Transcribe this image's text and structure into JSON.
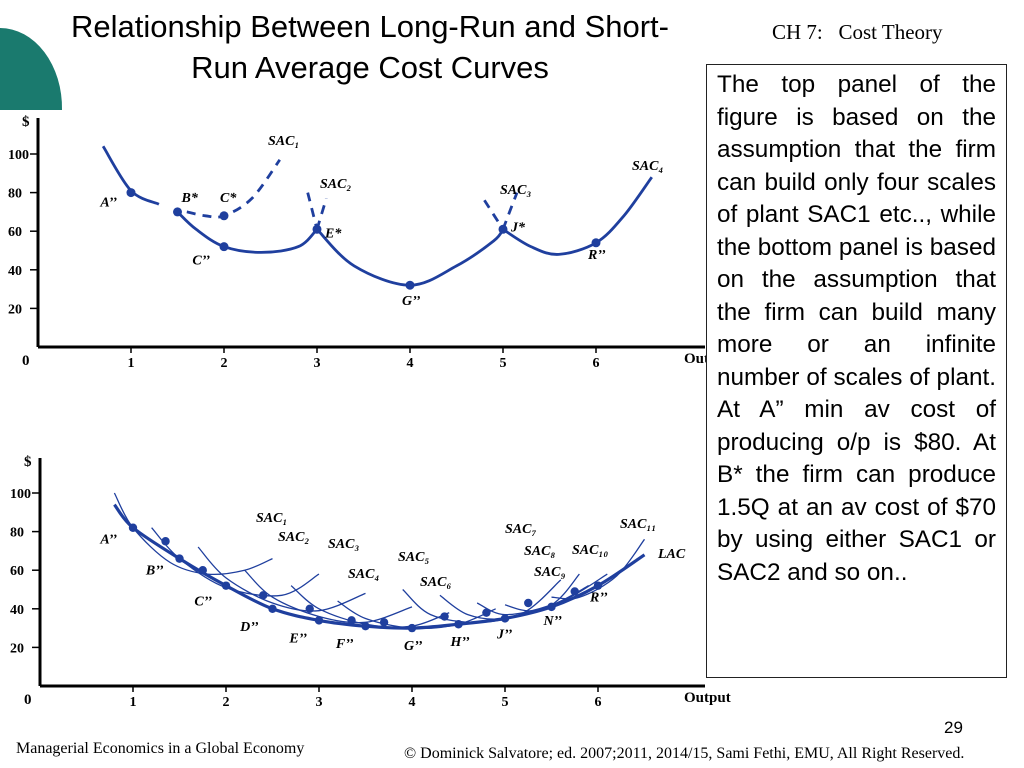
{
  "slide": {
    "title_line1": "Relationship Between Long-Run and Short-",
    "title_line2": "Run Average Cost Curves",
    "chapter": "CH 7:   Cost Theory",
    "side_text": "The top panel of the figure is based on the assumption that the firm can build only four scales of plant SAC1 etc.., while the bottom panel is based on the assumption that the firm can build many more or an infinite number of scales of plant. At  A” min av cost of producing o/p is $80. At B* the firm can produce 1.5Q at an av cost of $70 by using either SAC1 or SAC2 and so on..",
    "footer_left": "Managerial Economics  in a Global Economy",
    "footer_right": "© Dominick Salvatore; ed. 2007;2011, 2014/15, Sami Fethi, EMU, All Right Reserved.",
    "page_number": "29",
    "accent_color": "#1a7a6e",
    "curve_color": "#1f3f9e"
  },
  "chart_data": [
    {
      "type": "line",
      "panel": "top",
      "ylabel": "$",
      "xlabel": "Output",
      "origin_label": "0",
      "xlim": [
        0,
        7
      ],
      "ylim": [
        0,
        110
      ],
      "x_ticks": [
        1,
        2,
        3,
        4,
        5,
        6
      ],
      "y_ticks": [
        20,
        40,
        60,
        80,
        100
      ],
      "series": [
        {
          "name": "SAC₁",
          "x": [
            0.7,
            1.0,
            1.3,
            1.6,
            1.8,
            2.0,
            2.3,
            2.6
          ],
          "y": [
            104,
            81,
            74,
            70,
            68,
            68,
            77,
            97
          ],
          "dashed_from": 1.5
        },
        {
          "name": "SAC₂",
          "x": [
            1.5,
            1.7,
            2.0,
            2.4,
            2.8,
            3.0,
            3.1
          ],
          "y": [
            70,
            61,
            52,
            49,
            52,
            61,
            77
          ],
          "dashed_before": 1.5,
          "dashed_after": 3.0
        },
        {
          "name": "SAC₃",
          "x": [
            2.9,
            3.0,
            3.4,
            4.0,
            4.5,
            4.9,
            5.0,
            5.15
          ],
          "y": [
            80,
            61,
            42,
            32,
            42,
            55,
            61,
            80
          ],
          "dashed_before": 3.0,
          "dashed_after": 5.0
        },
        {
          "name": "SAC4",
          "x": [
            4.8,
            5.0,
            5.3,
            5.6,
            6.0,
            6.3,
            6.6
          ],
          "y": [
            76,
            61,
            52,
            48,
            54,
            68,
            88
          ],
          "dashed_before": 5.0
        }
      ],
      "points": [
        {
          "label": "A’’",
          "x": 1.0,
          "y": 80
        },
        {
          "label": "B*",
          "x": 1.5,
          "y": 70
        },
        {
          "label": "C*",
          "x": 2.0,
          "y": 68
        },
        {
          "label": "C’’",
          "x": 2.0,
          "y": 52
        },
        {
          "label": "E*",
          "x": 3.0,
          "y": 61
        },
        {
          "label": "G’’",
          "x": 4.0,
          "y": 32
        },
        {
          "label": "J*",
          "x": 5.0,
          "y": 61
        },
        {
          "label": "R’’",
          "x": 6.0,
          "y": 54
        }
      ],
      "curve_labels": [
        {
          "label": "SAC₁"
        },
        {
          "label": "SAC₂"
        },
        {
          "label": "SAC₃"
        },
        {
          "label": "SAC₄"
        }
      ]
    },
    {
      "type": "line",
      "panel": "bottom",
      "ylabel": "$",
      "xlabel": "Output",
      "origin_label": "0",
      "xlim": [
        0,
        7
      ],
      "ylim": [
        0,
        110
      ],
      "x_ticks": [
        1,
        2,
        3,
        4,
        5,
        6
      ],
      "y_ticks": [
        20,
        40,
        60,
        80,
        100
      ],
      "series": [
        {
          "name": "LAC",
          "x": [
            0.8,
            1.0,
            1.5,
            2.0,
            2.5,
            3.0,
            3.5,
            4.0,
            4.5,
            5.0,
            5.5,
            6.0,
            6.5
          ],
          "y": [
            94,
            82,
            66,
            52,
            40,
            34,
            31,
            30,
            32,
            35,
            41,
            52,
            68
          ]
        },
        {
          "name": "SAC₁",
          "x": [
            0.8,
            1.0,
            1.4,
            1.8,
            2.2,
            2.5
          ],
          "y": [
            100,
            82,
            64,
            58,
            60,
            66
          ]
        },
        {
          "name": "SAC₂",
          "x": [
            1.2,
            1.5,
            2.0,
            2.6,
            3.0
          ],
          "y": [
            82,
            66,
            51,
            47,
            58
          ]
        },
        {
          "name": "SAC₃",
          "x": [
            1.7,
            2.0,
            2.5,
            3.0,
            3.5
          ],
          "y": [
            72,
            56,
            43,
            39,
            48
          ]
        },
        {
          "name": "SAC₄",
          "x": [
            2.2,
            2.5,
            3.0,
            3.5,
            4.0
          ],
          "y": [
            60,
            46,
            36,
            33,
            41
          ]
        },
        {
          "name": "SAC₅",
          "x": [
            2.7,
            3.0,
            3.5,
            4.0,
            4.4
          ],
          "y": [
            52,
            40,
            32,
            31,
            38
          ]
        },
        {
          "name": "SAC₆",
          "x": [
            3.2,
            3.5,
            4.0,
            4.5,
            4.9
          ],
          "y": [
            44,
            35,
            30,
            32,
            40
          ]
        },
        {
          "name": "SAC₇",
          "x": [
            3.9,
            4.2,
            4.7,
            5.2,
            5.6
          ],
          "y": [
            50,
            37,
            33,
            38,
            55
          ]
        },
        {
          "name": "SAC₈",
          "x": [
            4.3,
            4.6,
            5.0,
            5.5,
            5.8
          ],
          "y": [
            47,
            37,
            35,
            42,
            58
          ]
        },
        {
          "name": "SAC₉",
          "x": [
            4.7,
            5.0,
            5.5,
            5.9
          ],
          "y": [
            43,
            37,
            42,
            52
          ]
        },
        {
          "name": "SAC₁₀",
          "x": [
            5.0,
            5.3,
            5.7,
            6.1
          ],
          "y": [
            42,
            39,
            46,
            58
          ]
        },
        {
          "name": "SAC₁₁",
          "x": [
            5.5,
            5.8,
            6.2,
            6.5
          ],
          "y": [
            46,
            46,
            57,
            76
          ]
        }
      ],
      "points": [
        {
          "label": "A’’",
          "x": 1.0,
          "y": 82
        },
        {
          "label": "",
          "x": 1.35,
          "y": 75
        },
        {
          "label": "B’’",
          "x": 1.5,
          "y": 66
        },
        {
          "label": "",
          "x": 1.75,
          "y": 60
        },
        {
          "label": "C’’",
          "x": 2.0,
          "y": 52
        },
        {
          "label": "",
          "x": 2.4,
          "y": 47
        },
        {
          "label": "D’’",
          "x": 2.5,
          "y": 40
        },
        {
          "label": "",
          "x": 2.9,
          "y": 40
        },
        {
          "label": "E’’",
          "x": 3.0,
          "y": 34
        },
        {
          "label": "",
          "x": 3.35,
          "y": 34
        },
        {
          "label": "F’’",
          "x": 3.5,
          "y": 31
        },
        {
          "label": "",
          "x": 3.7,
          "y": 33
        },
        {
          "label": "G’’",
          "x": 4.0,
          "y": 30
        },
        {
          "label": "",
          "x": 4.35,
          "y": 36
        },
        {
          "label": "H’’",
          "x": 4.5,
          "y": 32
        },
        {
          "label": "",
          "x": 4.8,
          "y": 38
        },
        {
          "label": "J’’",
          "x": 5.0,
          "y": 35
        },
        {
          "label": "",
          "x": 5.25,
          "y": 43
        },
        {
          "label": "N’’",
          "x": 5.5,
          "y": 41
        },
        {
          "label": "",
          "x": 5.75,
          "y": 49
        },
        {
          "label": "R’’",
          "x": 6.0,
          "y": 52
        }
      ],
      "curve_labels": [
        {
          "label": "SAC₁"
        },
        {
          "label": "SAC₂"
        },
        {
          "label": "SAC₃"
        },
        {
          "label": "SAC₄"
        },
        {
          "label": "SAC₅"
        },
        {
          "label": "SAC₆"
        },
        {
          "label": "SAC₇"
        },
        {
          "label": "SAC₈"
        },
        {
          "label": "SAC₉"
        },
        {
          "label": "SAC₁₀"
        },
        {
          "label": "SAC₁₁"
        },
        {
          "label": "LAC"
        }
      ]
    }
  ]
}
